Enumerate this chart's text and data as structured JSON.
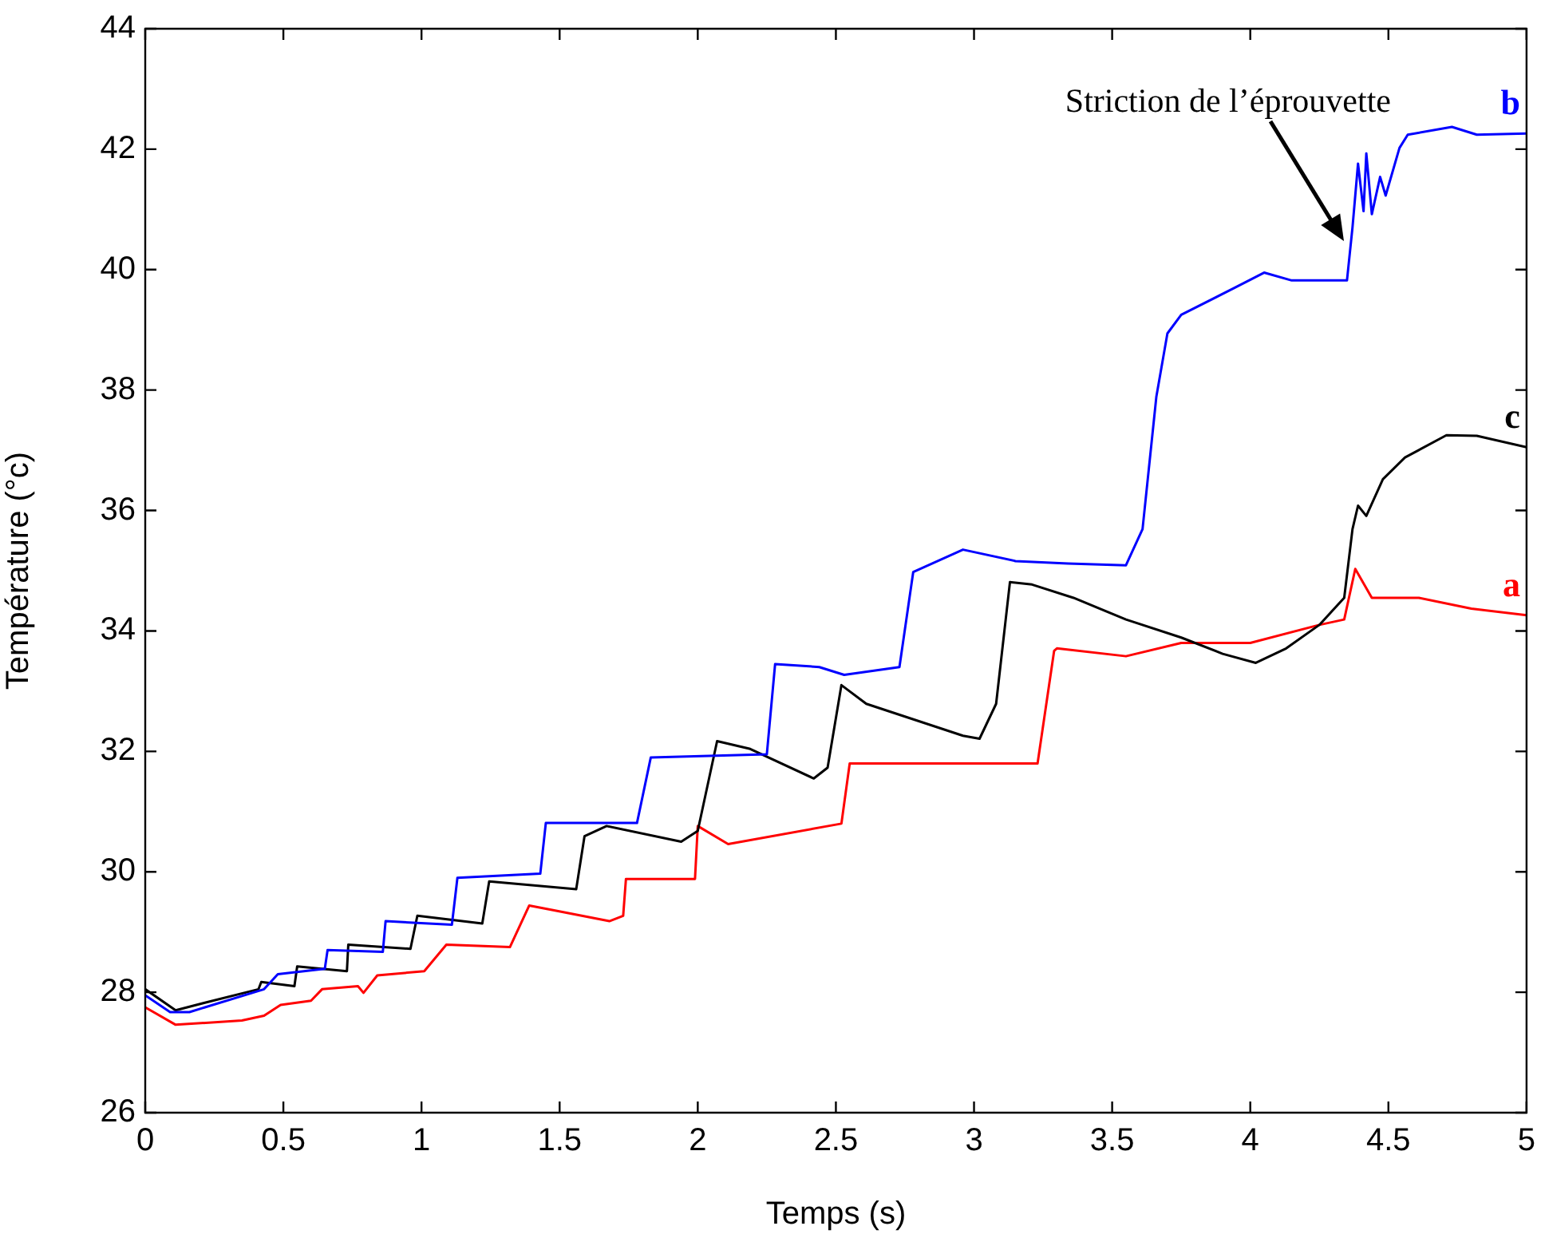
{
  "chart_data": {
    "type": "line",
    "xlabel": "Temps (s)",
    "ylabel": "Température (°c)",
    "xlim": [
      0,
      5
    ],
    "ylim": [
      26,
      44
    ],
    "xticks": [
      0,
      0.5,
      1,
      1.5,
      2,
      2.5,
      3,
      3.5,
      4,
      4.5,
      5
    ],
    "yticks": [
      26,
      28,
      30,
      32,
      34,
      36,
      38,
      40,
      42,
      44
    ],
    "marker": "none",
    "line_style": "solid",
    "annotations": [
      "Striction de l’éprouvette"
    ],
    "series": [
      {
        "name": "b",
        "color": "#0000ff",
        "x": [
          0,
          0.09,
          0.16,
          0.43,
          0.48,
          0.65,
          0.66,
          0.86,
          0.87,
          1.11,
          1.13,
          1.43,
          1.45,
          1.7,
          1.78,
          1.83,
          2.25,
          2.28,
          2.44,
          2.53,
          2.73,
          2.78,
          2.96,
          3.15,
          3.34,
          3.55,
          3.61,
          3.66,
          3.7,
          3.75,
          3.94,
          4.05,
          4.15,
          4.35,
          4.37,
          4.39,
          4.41,
          4.42,
          4.44,
          4.47,
          4.49,
          4.54,
          4.57,
          4.73,
          4.82,
          5
        ],
        "values": [
          27.95,
          27.67,
          27.67,
          28.05,
          28.3,
          28.39,
          28.7,
          28.67,
          29.18,
          29.12,
          29.9,
          29.97,
          30.81,
          30.81,
          30.81,
          31.9,
          31.95,
          33.45,
          33.4,
          33.27,
          33.4,
          34.98,
          35.35,
          35.16,
          35.12,
          35.09,
          35.69,
          37.89,
          38.94,
          39.25,
          39.69,
          39.95,
          39.82,
          39.82,
          40.7,
          41.76,
          40.97,
          41.93,
          40.92,
          41.54,
          41.23,
          42.02,
          42.24,
          42.37,
          42.24,
          42.26
        ]
      },
      {
        "name": "c",
        "color": "#000000",
        "x": [
          0,
          0.11,
          0.21,
          0.41,
          0.42,
          0.54,
          0.55,
          0.73,
          0.735,
          0.96,
          0.985,
          1.22,
          1.245,
          1.56,
          1.59,
          1.67,
          1.94,
          2,
          2.07,
          2.19,
          2.42,
          2.47,
          2.52,
          2.61,
          2.96,
          3.02,
          3.08,
          3.13,
          3.21,
          3.36,
          3.55,
          3.75,
          3.9,
          4.02,
          4.13,
          4.25,
          4.34,
          4.37,
          4.39,
          4.42,
          4.48,
          4.56,
          4.71,
          4.82,
          5
        ],
        "values": [
          28.05,
          27.7,
          27.82,
          28.05,
          28.17,
          28.1,
          28.43,
          28.35,
          28.79,
          28.72,
          29.27,
          29.14,
          29.84,
          29.71,
          30.59,
          30.76,
          30.5,
          30.68,
          32.17,
          32.04,
          31.55,
          31.73,
          33.1,
          32.79,
          32.26,
          32.21,
          32.79,
          34.81,
          34.77,
          34.55,
          34.19,
          33.89,
          33.62,
          33.47,
          33.71,
          34.1,
          34.55,
          35.69,
          36.08,
          35.91,
          36.52,
          36.88,
          37.25,
          37.24,
          37.05
        ]
      },
      {
        "name": "a",
        "color": "#ff0000",
        "x": [
          0,
          0.11,
          0.35,
          0.43,
          0.49,
          0.6,
          0.64,
          0.77,
          0.79,
          0.84,
          1.01,
          1.09,
          1.32,
          1.39,
          1.48,
          1.68,
          1.73,
          1.74,
          1.99,
          2,
          2.11,
          2.52,
          2.55,
          3.23,
          3.29,
          3.3,
          3.55,
          3.75,
          4,
          4.25,
          4.34,
          4.38,
          4.44,
          4.61,
          4.8,
          5
        ],
        "values": [
          27.75,
          27.46,
          27.53,
          27.61,
          27.79,
          27.86,
          28.05,
          28.1,
          27.99,
          28.28,
          28.35,
          28.79,
          28.75,
          29.44,
          29.36,
          29.18,
          29.27,
          29.88,
          29.88,
          30.76,
          30.46,
          30.8,
          31.8,
          31.8,
          33.67,
          33.71,
          33.58,
          33.8,
          33.8,
          34.1,
          34.19,
          35.03,
          34.55,
          34.55,
          34.37,
          34.26
        ]
      }
    ]
  }
}
